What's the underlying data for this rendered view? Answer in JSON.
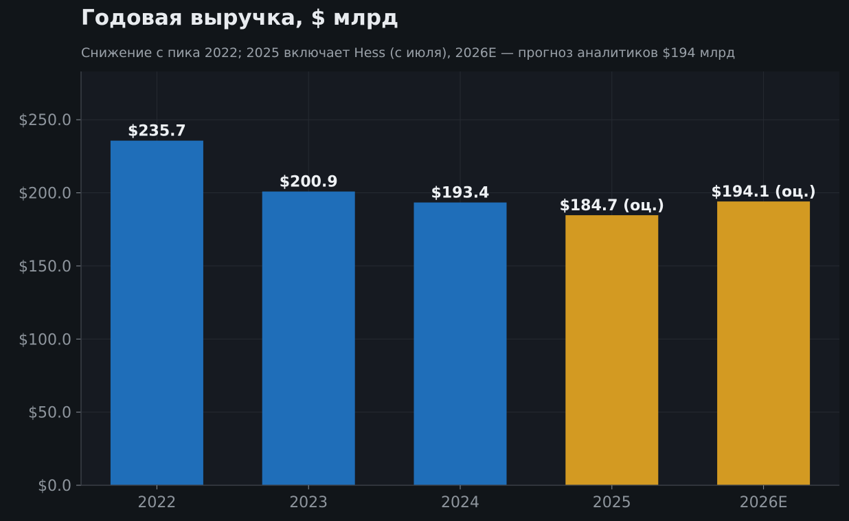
{
  "title": "Годовая выручка, $ млрд",
  "subtitle": "Снижение с пика 2022; 2025 включает Hess (с июля), 2026E — прогноз аналитиков $194 млрд",
  "colors": {
    "background": "#111519",
    "plot_background": "#161a21",
    "grid": "#262b33",
    "actual": "#1f6eb9",
    "estimate": "#d39a22",
    "text": "#eef1f4",
    "muted": "#8e959d"
  },
  "chart_data": {
    "type": "bar",
    "categories": [
      "2022",
      "2023",
      "2024",
      "2025",
      "2026E"
    ],
    "values": [
      235.7,
      200.9,
      193.4,
      184.7,
      194.1
    ],
    "labels": [
      "$235.7",
      "$200.9",
      "$193.4",
      "$184.7 (оц.)",
      "$194.1 (оц.)"
    ],
    "estimate": [
      false,
      false,
      false,
      true,
      true
    ],
    "yticks": [
      0,
      50,
      100,
      150,
      200,
      250
    ],
    "ytick_labels": [
      "$0.0",
      "$50.0",
      "$100.0",
      "$150.0",
      "$200.0",
      "$250.0"
    ],
    "ylim": [
      0,
      283
    ],
    "grid": true,
    "xlabel": "",
    "ylabel": ""
  }
}
